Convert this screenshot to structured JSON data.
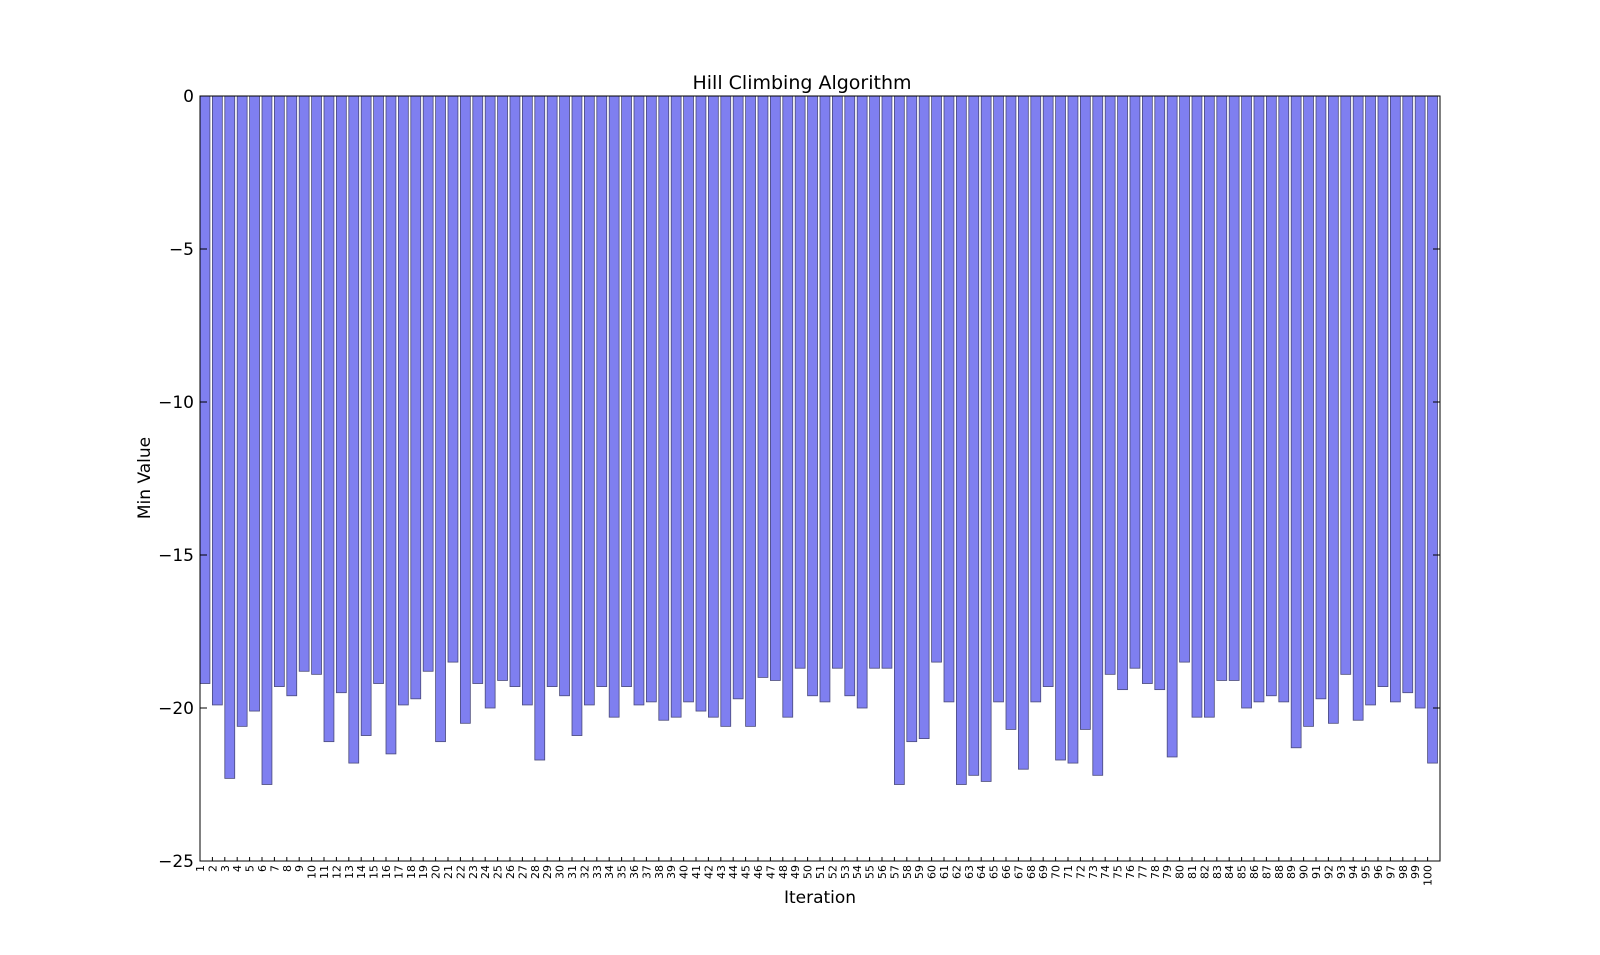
{
  "chart_data": {
    "type": "bar",
    "title": "Hill Climbing Algorithm",
    "xlabel": "Iteration",
    "ylabel": "Min Value",
    "ylim": [
      -25,
      0
    ],
    "yticks": [
      0,
      -5,
      -10,
      -15,
      -20,
      -25
    ],
    "ytick_labels": [
      "0",
      "−5",
      "−10",
      "−15",
      "−20",
      "−25"
    ],
    "bar_color": "#7f7ff0",
    "bar_edge_color": "#4a4a7a",
    "categories": [
      "1",
      "2",
      "3",
      "4",
      "5",
      "6",
      "7",
      "8",
      "9",
      "10",
      "11",
      "12",
      "13",
      "14",
      "15",
      "16",
      "17",
      "18",
      "19",
      "20",
      "21",
      "22",
      "23",
      "24",
      "25",
      "26",
      "27",
      "28",
      "29",
      "30",
      "31",
      "32",
      "33",
      "34",
      "35",
      "36",
      "37",
      "38",
      "39",
      "40",
      "41",
      "42",
      "43",
      "44",
      "45",
      "46",
      "47",
      "48",
      "49",
      "50",
      "51",
      "52",
      "53",
      "54",
      "55",
      "56",
      "57",
      "58",
      "59",
      "60",
      "61",
      "62",
      "63",
      "64",
      "65",
      "66",
      "67",
      "68",
      "69",
      "70",
      "71",
      "72",
      "73",
      "74",
      "75",
      "76",
      "77",
      "78",
      "79",
      "80",
      "81",
      "82",
      "83",
      "84",
      "85",
      "86",
      "87",
      "88",
      "89",
      "90",
      "91",
      "92",
      "93",
      "94",
      "95",
      "96",
      "97",
      "98",
      "99",
      "100"
    ],
    "values": [
      -19.2,
      -19.9,
      -22.3,
      -20.6,
      -20.1,
      -22.5,
      -19.3,
      -19.6,
      -18.8,
      -18.9,
      -21.1,
      -19.5,
      -21.8,
      -20.9,
      -19.2,
      -21.5,
      -19.9,
      -19.7,
      -18.8,
      -21.1,
      -18.5,
      -20.5,
      -19.2,
      -20.0,
      -19.1,
      -19.3,
      -19.9,
      -21.7,
      -19.3,
      -19.6,
      -20.9,
      -19.9,
      -19.3,
      -20.3,
      -19.3,
      -19.9,
      -19.8,
      -20.4,
      -20.3,
      -19.8,
      -20.1,
      -20.3,
      -20.6,
      -19.7,
      -20.6,
      -19.0,
      -19.1,
      -20.3,
      -18.7,
      -19.6,
      -19.8,
      -18.7,
      -19.6,
      -20.0,
      -18.7,
      -18.7,
      -22.5,
      -21.1,
      -21.0,
      -18.5,
      -19.8,
      -22.5,
      -22.2,
      -22.4,
      -19.8,
      -20.7,
      -22.0,
      -19.8,
      -19.3,
      -21.7,
      -21.8,
      -20.7,
      -22.2,
      -18.9,
      -19.4,
      -18.7,
      -19.2,
      -19.4,
      -21.6,
      -18.5,
      -20.3,
      -20.3,
      -19.1,
      -19.1,
      -20.0,
      -19.8,
      -19.6,
      -19.8,
      -21.3,
      -20.6,
      -19.7,
      -20.5,
      -18.9,
      -20.4,
      -19.9,
      -19.3,
      -19.8,
      -19.5,
      -20.0,
      -21.8
    ]
  }
}
